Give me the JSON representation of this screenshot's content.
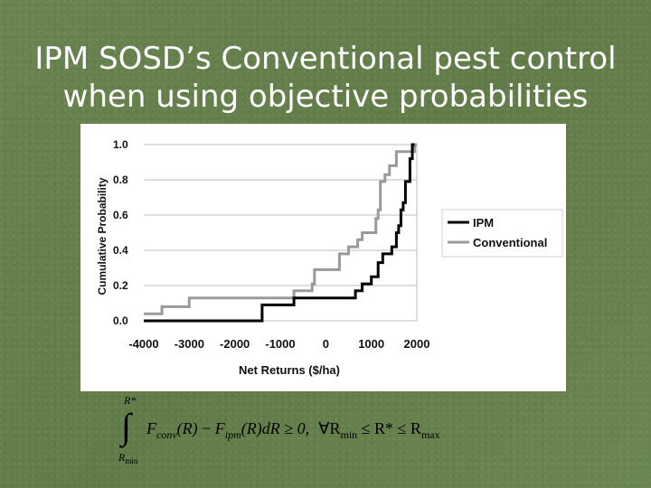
{
  "slide": {
    "title_line1": "IPM SOSD’s Conventional pest control",
    "title_line2": "when using objective probabilities",
    "background_color": "#66804d"
  },
  "chart_data": {
    "type": "line",
    "step": true,
    "xlabel": "Net Returns ($/ha)",
    "ylabel": "Cumulative Probability",
    "xlim": [
      -4000,
      2000
    ],
    "ylim": [
      0.0,
      1.0
    ],
    "x_ticks": [
      "-4000",
      "-3000",
      "-2000",
      "-1000",
      "0",
      "1000",
      "2000"
    ],
    "y_ticks": [
      "0.0",
      "0.2",
      "0.4",
      "0.6",
      "0.8",
      "1.0"
    ],
    "grid": "horizontal",
    "legend_position": "right",
    "series": [
      {
        "name": "IPM",
        "color": "#000000",
        "points": [
          [
            -4000,
            0.0
          ],
          [
            -1400,
            0.0
          ],
          [
            -1400,
            0.09
          ],
          [
            -700,
            0.09
          ],
          [
            -700,
            0.13
          ],
          [
            650,
            0.13
          ],
          [
            650,
            0.17
          ],
          [
            800,
            0.17
          ],
          [
            800,
            0.21
          ],
          [
            1000,
            0.21
          ],
          [
            1000,
            0.25
          ],
          [
            1150,
            0.25
          ],
          [
            1150,
            0.33
          ],
          [
            1250,
            0.33
          ],
          [
            1250,
            0.38
          ],
          [
            1450,
            0.38
          ],
          [
            1450,
            0.42
          ],
          [
            1550,
            0.42
          ],
          [
            1550,
            0.5
          ],
          [
            1600,
            0.5
          ],
          [
            1600,
            0.54
          ],
          [
            1650,
            0.54
          ],
          [
            1650,
            0.63
          ],
          [
            1700,
            0.63
          ],
          [
            1700,
            0.67
          ],
          [
            1750,
            0.67
          ],
          [
            1750,
            0.79
          ],
          [
            1850,
            0.79
          ],
          [
            1850,
            0.92
          ],
          [
            1900,
            0.92
          ],
          [
            1900,
            1.0
          ],
          [
            1950,
            1.0
          ]
        ]
      },
      {
        "name": "Conventional",
        "color": "#9a9a9a",
        "points": [
          [
            -4000,
            0.04
          ],
          [
            -3600,
            0.04
          ],
          [
            -3600,
            0.08
          ],
          [
            -3000,
            0.08
          ],
          [
            -3000,
            0.13
          ],
          [
            -700,
            0.13
          ],
          [
            -700,
            0.17
          ],
          [
            -300,
            0.17
          ],
          [
            -300,
            0.21
          ],
          [
            -250,
            0.21
          ],
          [
            -250,
            0.29
          ],
          [
            300,
            0.29
          ],
          [
            300,
            0.38
          ],
          [
            500,
            0.38
          ],
          [
            500,
            0.42
          ],
          [
            700,
            0.42
          ],
          [
            700,
            0.46
          ],
          [
            800,
            0.46
          ],
          [
            800,
            0.5
          ],
          [
            1100,
            0.5
          ],
          [
            1100,
            0.58
          ],
          [
            1150,
            0.58
          ],
          [
            1150,
            0.63
          ],
          [
            1200,
            0.63
          ],
          [
            1200,
            0.79
          ],
          [
            1300,
            0.79
          ],
          [
            1300,
            0.83
          ],
          [
            1400,
            0.83
          ],
          [
            1400,
            0.88
          ],
          [
            1550,
            0.88
          ],
          [
            1550,
            0.96
          ],
          [
            1950,
            0.96
          ],
          [
            1950,
            1.0
          ],
          [
            2000,
            1.0
          ]
        ]
      }
    ]
  },
  "formula": {
    "upper_limit": "R*",
    "lower_limit": "R",
    "lower_limit_sub": "min",
    "F_conv_sub": "conv",
    "F_ipm_sub": "ipm",
    "text_R": "(R)",
    "text_minus": " − ",
    "text_dR": "(R)dR ≥ 0,",
    "text_forall": "∀R",
    "text_min_sub": "min",
    "text_le1": " ≤ R* ≤ R",
    "text_max_sub": "max"
  }
}
